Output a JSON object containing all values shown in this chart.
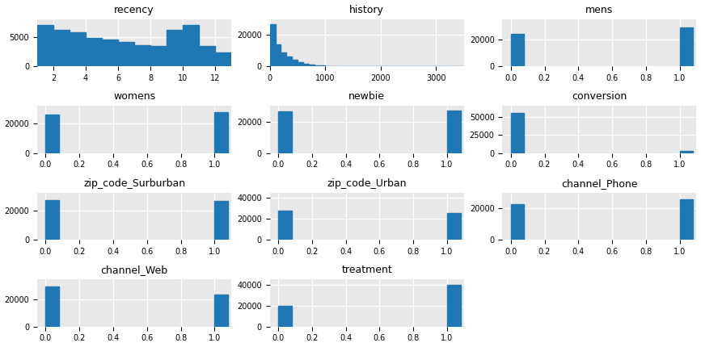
{
  "background_color": "#e8e8e8",
  "bar_color": "#1f77b4",
  "subplots": [
    {
      "name": "recency",
      "type": "bar_manual",
      "bar_edges": [
        1,
        2,
        3,
        4,
        5,
        6,
        7,
        8,
        9,
        10,
        11,
        12,
        13
      ],
      "bar_heights": [
        7000,
        6200,
        5800,
        4800,
        4600,
        4200,
        3600,
        3500,
        6200,
        7000,
        3500,
        2400
      ],
      "xlim": [
        1,
        13
      ],
      "ylim": [
        0,
        8000
      ],
      "yticks": [
        0,
        5000
      ],
      "xticks": [
        2,
        4,
        6,
        8,
        10,
        12
      ]
    },
    {
      "name": "history",
      "type": "bar_manual",
      "bar_edges": [
        0,
        100,
        200,
        300,
        400,
        500,
        600,
        700,
        800,
        900,
        1000,
        3500
      ],
      "bar_heights": [
        27000,
        14000,
        9000,
        6500,
        4000,
        2500,
        1500,
        1000,
        700,
        400,
        300
      ],
      "xlim": [
        0,
        3500
      ],
      "ylim": [
        0,
        30000
      ],
      "yticks": [
        0,
        20000
      ],
      "xticks": [
        0,
        1000,
        2000,
        3000
      ]
    },
    {
      "name": "mens",
      "type": "binary",
      "val0": 24000,
      "val1": 29000,
      "xlim": [
        -0.05,
        1.1
      ],
      "ylim": [
        0,
        35000
      ],
      "yticks": [
        0,
        20000
      ],
      "xticks": [
        0.0,
        0.2,
        0.4,
        0.6,
        0.8,
        1.0
      ]
    },
    {
      "name": "womens",
      "type": "binary",
      "val0": 26000,
      "val1": 28000,
      "xlim": [
        -0.05,
        1.1
      ],
      "ylim": [
        0,
        32000
      ],
      "yticks": [
        0,
        20000
      ],
      "xticks": [
        0.0,
        0.2,
        0.4,
        0.6,
        0.8,
        1.0
      ]
    },
    {
      "name": "newbie",
      "type": "binary",
      "val0": 26500,
      "val1": 27000,
      "xlim": [
        -0.05,
        1.1
      ],
      "ylim": [
        0,
        30000
      ],
      "yticks": [
        0,
        20000
      ],
      "xticks": [
        0.0,
        0.2,
        0.4,
        0.6,
        0.8,
        1.0
      ]
    },
    {
      "name": "conversion",
      "type": "binary",
      "val0": 55000,
      "val1": 3500,
      "xlim": [
        -0.05,
        1.1
      ],
      "ylim": [
        0,
        65000
      ],
      "yticks": [
        0,
        25000,
        50000
      ],
      "xticks": [
        0.0,
        0.2,
        0.4,
        0.6,
        0.8,
        1.0
      ]
    },
    {
      "name": "zip_code_Surburban",
      "type": "binary",
      "val0": 27000,
      "val1": 26500,
      "xlim": [
        -0.05,
        1.1
      ],
      "ylim": [
        0,
        32000
      ],
      "yticks": [
        0,
        20000
      ],
      "xticks": [
        0.0,
        0.2,
        0.4,
        0.6,
        0.8,
        1.0
      ]
    },
    {
      "name": "zip_code_Urban",
      "type": "binary",
      "val0": 28000,
      "val1": 26000,
      "xlim": [
        -0.05,
        1.1
      ],
      "ylim": [
        0,
        45000
      ],
      "yticks": [
        0,
        20000,
        40000
      ],
      "xticks": [
        0.0,
        0.2,
        0.4,
        0.6,
        0.8,
        1.0
      ]
    },
    {
      "name": "channel_Phone",
      "type": "binary",
      "val0": 23000,
      "val1": 26000,
      "xlim": [
        -0.05,
        1.1
      ],
      "ylim": [
        0,
        30000
      ],
      "yticks": [
        0,
        20000
      ],
      "xticks": [
        0.0,
        0.2,
        0.4,
        0.6,
        0.8,
        1.0
      ]
    },
    {
      "name": "channel_Web",
      "type": "binary",
      "val0": 30000,
      "val1": 24000,
      "xlim": [
        -0.05,
        1.1
      ],
      "ylim": [
        0,
        35000
      ],
      "yticks": [
        0,
        20000
      ],
      "xticks": [
        0.0,
        0.2,
        0.4,
        0.6,
        0.8,
        1.0
      ]
    },
    {
      "name": "treatment",
      "type": "binary",
      "val0": 20000,
      "val1": 40000,
      "xlim": [
        -0.05,
        1.1
      ],
      "ylim": [
        0,
        45000
      ],
      "yticks": [
        0,
        20000,
        40000
      ],
      "xticks": [
        0.0,
        0.2,
        0.4,
        0.6,
        0.8,
        1.0
      ]
    }
  ]
}
